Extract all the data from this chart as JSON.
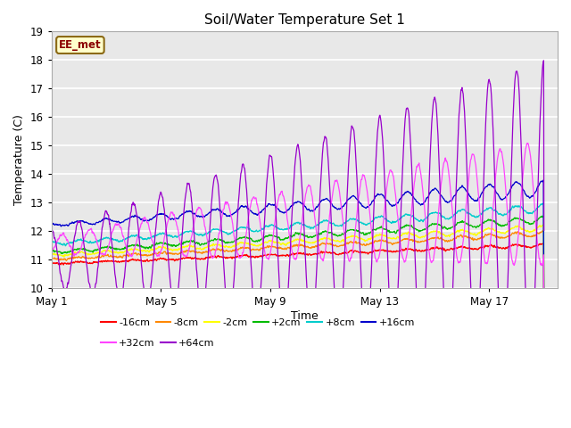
{
  "title": "Soil/Water Temperature Set 1",
  "xlabel": "Time",
  "ylabel": "Temperature (C)",
  "ylim": [
    10.0,
    19.0
  ],
  "yticks": [
    10.0,
    11.0,
    12.0,
    13.0,
    14.0,
    15.0,
    16.0,
    17.0,
    18.0,
    19.0
  ],
  "xlim_start": 0,
  "xlim_end": 18.5,
  "xtick_positions": [
    0,
    4,
    8,
    12,
    16
  ],
  "xtick_labels": [
    "May 1",
    "May 5",
    "May 9",
    "May 13",
    "May 17"
  ],
  "annotation_text": "EE_met",
  "annotation_bg": "#ffffcc",
  "annotation_border": "#8b6914",
  "plot_bg": "#e8e8e8",
  "series": [
    {
      "label": "-16cm",
      "color": "#ff0000"
    },
    {
      "label": "-8cm",
      "color": "#ff8800"
    },
    {
      "label": "-2cm",
      "color": "#ffff00"
    },
    {
      "label": "+2cm",
      "color": "#00bb00"
    },
    {
      "label": "+8cm",
      "color": "#00cccc"
    },
    {
      "label": "+16cm",
      "color": "#0000cc"
    },
    {
      "label": "+32cm",
      "color": "#ff44ff"
    },
    {
      "label": "+64cm",
      "color": "#9900cc"
    }
  ],
  "n_points": 1800,
  "days": 18,
  "random_seed": 7
}
